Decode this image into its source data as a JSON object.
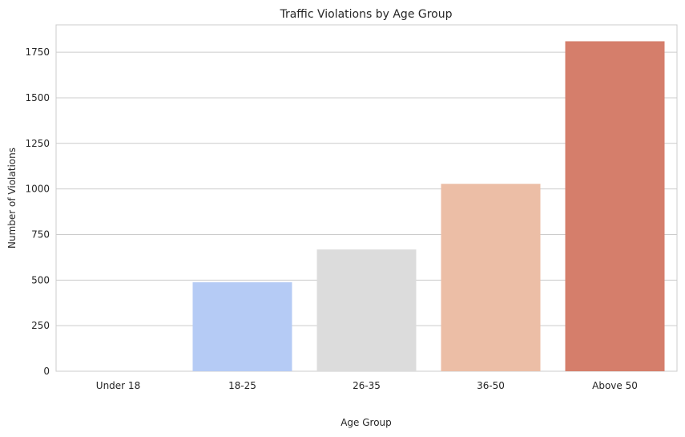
{
  "chart_data": {
    "type": "bar",
    "title": "Traffic Violations by Age Group",
    "xlabel": "Age Group",
    "ylabel": "Number of Violations",
    "categories": [
      "Under 18",
      "18-25",
      "26-35",
      "36-50",
      "Above 50"
    ],
    "values": [
      0,
      488,
      668,
      1028,
      1810
    ],
    "ylim": [
      0,
      1900
    ],
    "yticks": [
      0,
      250,
      500,
      750,
      1000,
      1250,
      1500,
      1750
    ],
    "grid": true,
    "colors": [
      "#9bbcff",
      "#b5cbf5",
      "#dcdcdc",
      "#ecbea6",
      "#d57e6b"
    ]
  }
}
